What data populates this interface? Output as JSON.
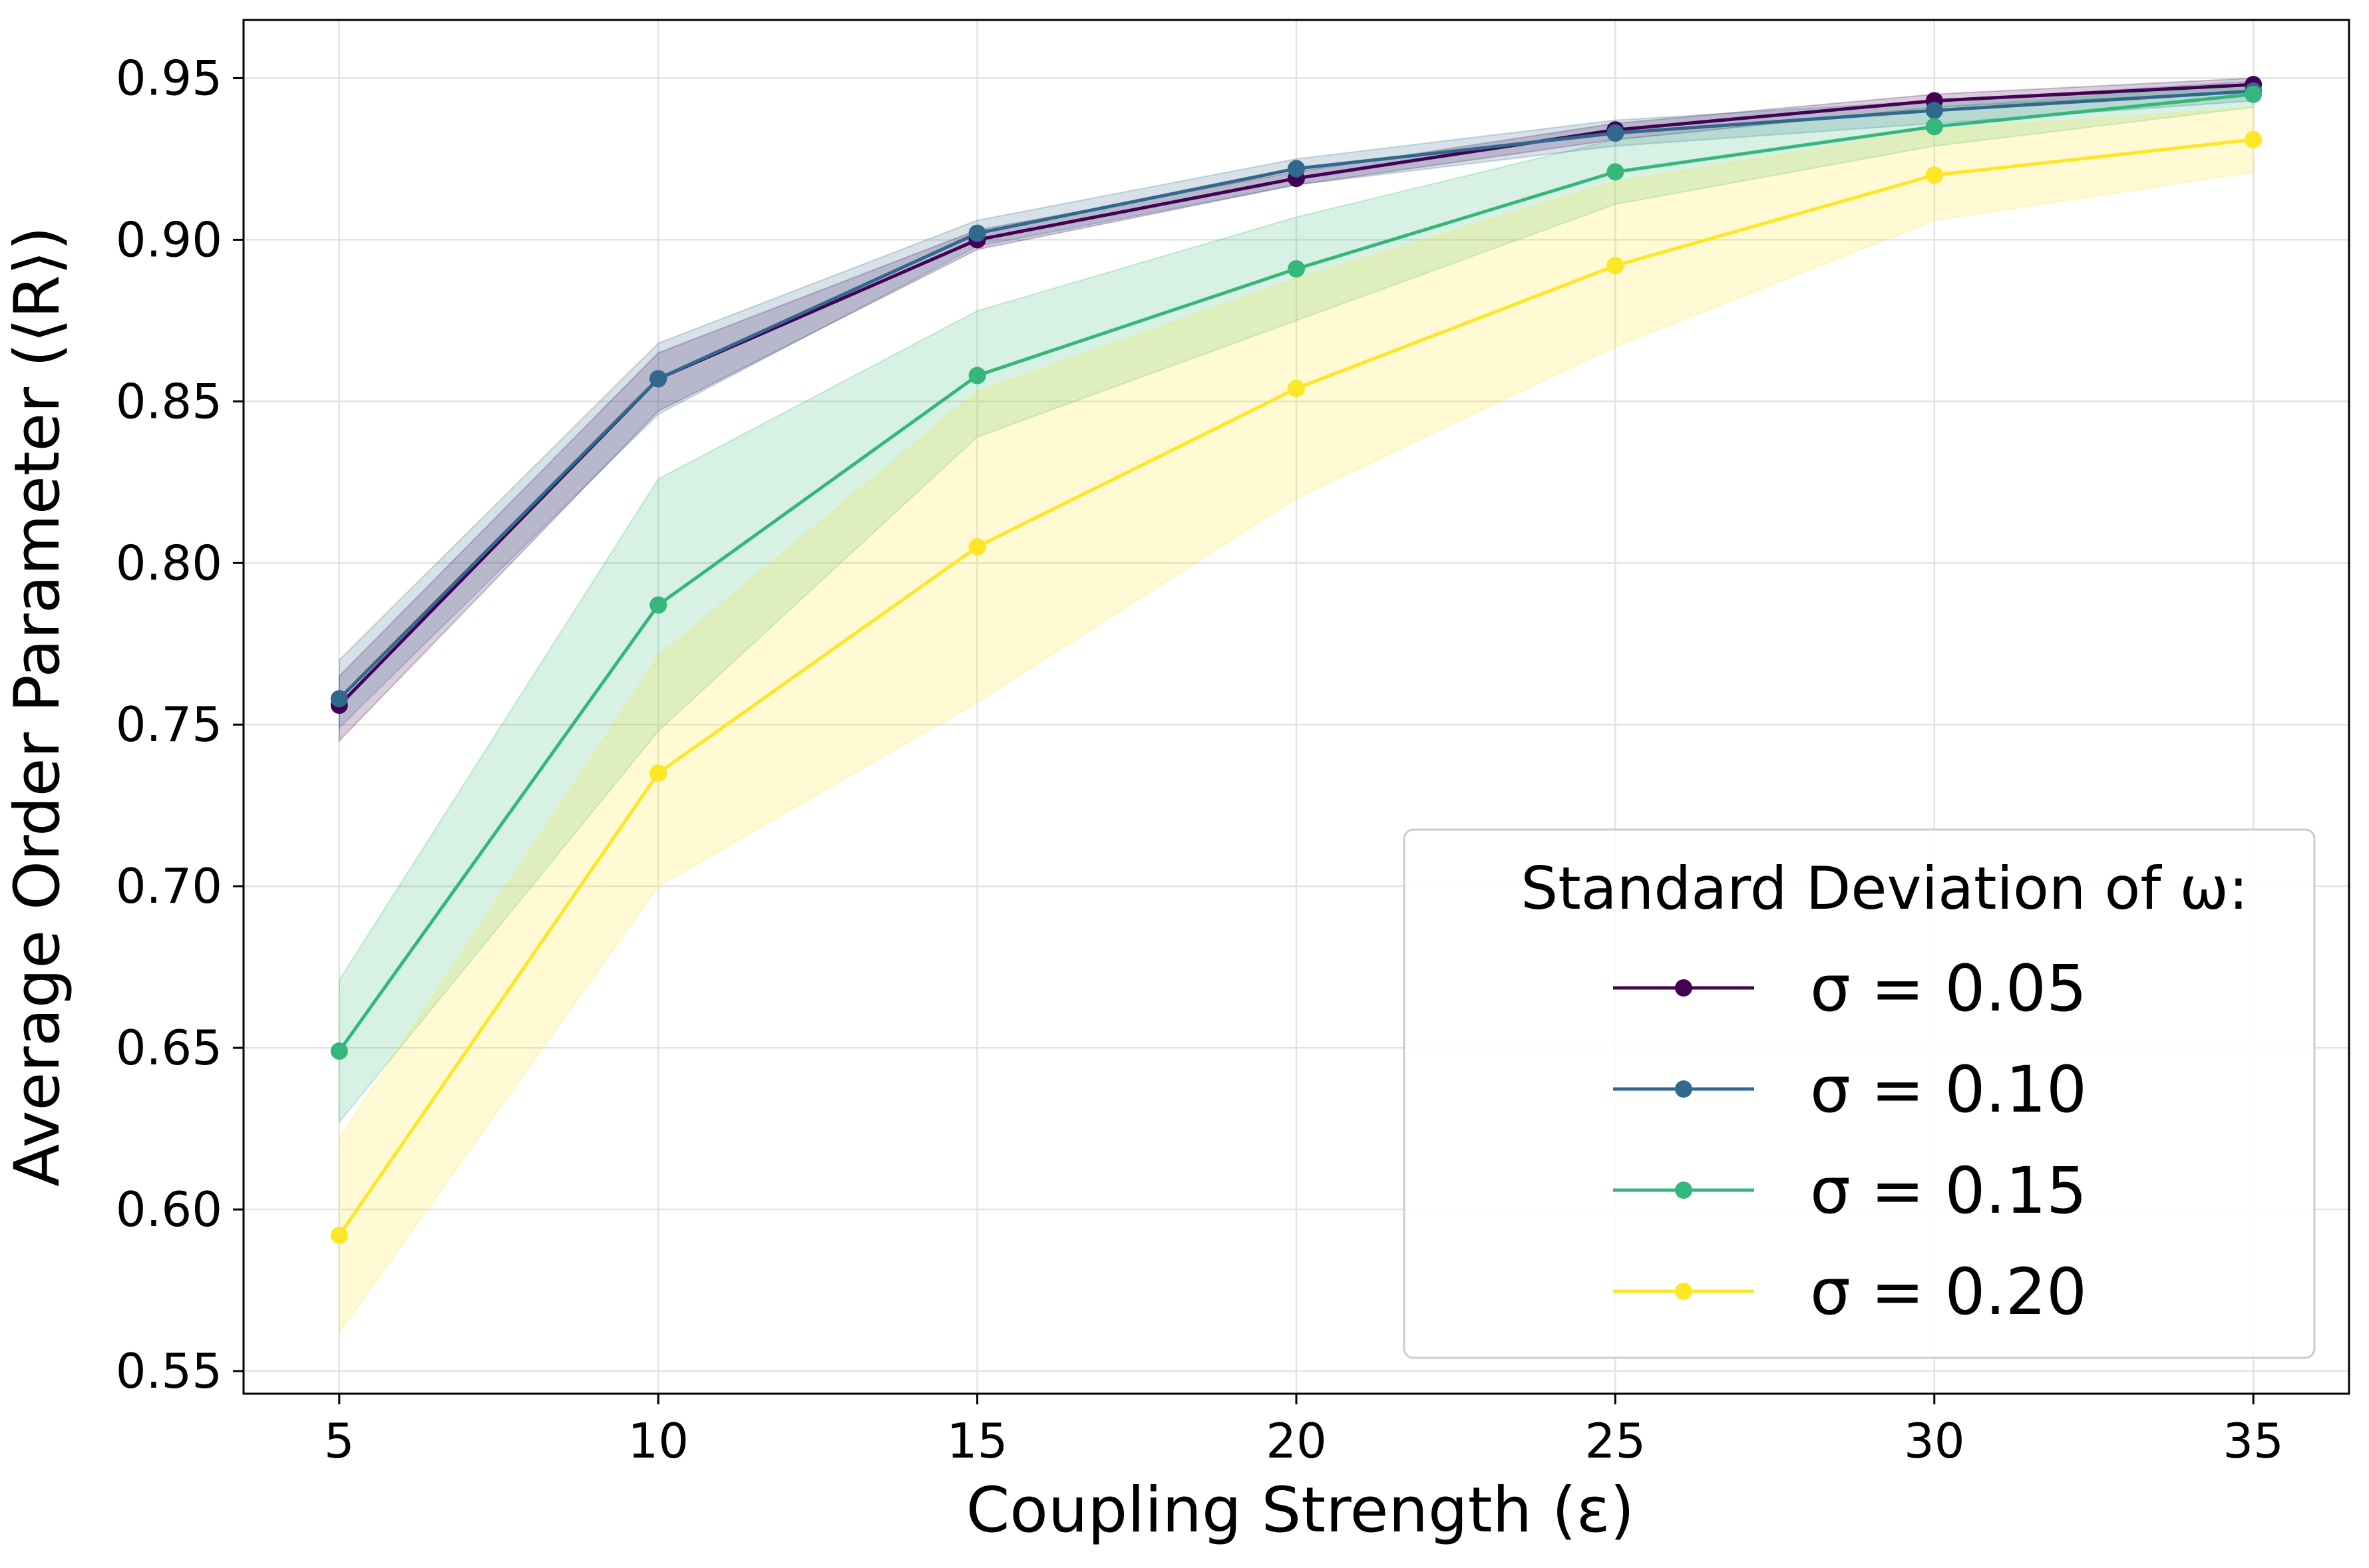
{
  "chart_data": {
    "type": "line",
    "xlabel": "Coupling Strength (ε)",
    "ylabel": "Average Order Parameter (⟨R⟩)",
    "x": [
      5,
      10,
      15,
      20,
      25,
      30,
      35
    ],
    "xlim": [
      3.5,
      36.5
    ],
    "ylim": [
      0.543,
      0.968
    ],
    "xticks": [
      5,
      10,
      15,
      20,
      25,
      30,
      35
    ],
    "xtick_labels": [
      "5",
      "10",
      "15",
      "20",
      "25",
      "30",
      "35"
    ],
    "yticks": [
      0.55,
      0.6,
      0.65,
      0.7,
      0.75,
      0.8,
      0.85,
      0.9,
      0.95
    ],
    "ytick_labels": [
      "0.55",
      "0.60",
      "0.65",
      "0.70",
      "0.75",
      "0.80",
      "0.85",
      "0.90",
      "0.95"
    ],
    "grid": true,
    "legend": {
      "title": "Standard Deviation of ω:",
      "placement": "lower-right"
    },
    "series": [
      {
        "name": "σ = 0.05",
        "color": "#440154",
        "values": [
          0.756,
          0.857,
          0.9,
          0.919,
          0.934,
          0.943,
          0.948
        ],
        "lower": [
          0.745,
          0.847,
          0.897,
          0.917,
          0.931,
          0.941,
          0.946
        ],
        "upper": [
          0.765,
          0.865,
          0.903,
          0.921,
          0.936,
          0.945,
          0.95
        ]
      },
      {
        "name": "σ = 0.10",
        "color": "#31688e",
        "values": [
          0.758,
          0.857,
          0.902,
          0.922,
          0.933,
          0.94,
          0.946
        ],
        "lower": [
          0.749,
          0.846,
          0.898,
          0.917,
          0.929,
          0.936,
          0.943
        ],
        "upper": [
          0.77,
          0.868,
          0.906,
          0.925,
          0.937,
          0.943,
          0.949
        ]
      },
      {
        "name": "σ = 0.15",
        "color": "#35b779",
        "values": [
          0.649,
          0.787,
          0.858,
          0.891,
          0.921,
          0.935,
          0.945
        ],
        "lower": [
          0.627,
          0.748,
          0.839,
          0.875,
          0.911,
          0.929,
          0.941
        ],
        "upper": [
          0.671,
          0.826,
          0.878,
          0.907,
          0.931,
          0.941,
          0.948
        ]
      },
      {
        "name": "σ = 0.20",
        "color": "#fde725",
        "values": [
          0.592,
          0.735,
          0.805,
          0.854,
          0.892,
          0.92,
          0.931
        ],
        "lower": [
          0.562,
          0.7,
          0.757,
          0.82,
          0.867,
          0.906,
          0.921
        ],
        "upper": [
          0.622,
          0.771,
          0.853,
          0.888,
          0.918,
          0.934,
          0.941
        ]
      }
    ]
  }
}
